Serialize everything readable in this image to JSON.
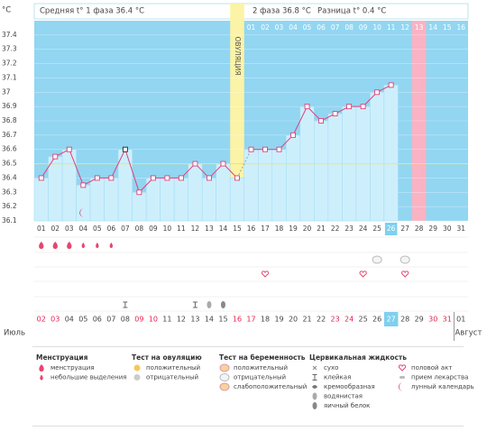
{
  "chart_data": {
    "type": "line",
    "y_unit": "°C",
    "phase1_text": "Средняя t° 1 фаза 36.4 °C",
    "phase2_text": "2 фаза 36.8 °C",
    "diff_text": "Разница t° 0.4 °C",
    "ovulation_label": "ОВУЛЯЦИЯ",
    "ovulation_day": "15",
    "categories": [
      "01",
      "02",
      "03",
      "04",
      "05",
      "06",
      "07",
      "08",
      "09",
      "10",
      "11",
      "12",
      "13",
      "14",
      "15",
      "16",
      "17",
      "18",
      "19",
      "20",
      "21",
      "22",
      "23",
      "24",
      "25",
      "26",
      "27",
      "28",
      "29",
      "30",
      "31"
    ],
    "highlighted_day": "26",
    "phase2_days": [
      "01",
      "02",
      "03",
      "04",
      "05",
      "06",
      "07",
      "08",
      "09",
      "10",
      "11",
      "12",
      "13",
      "14",
      "15",
      "16"
    ],
    "highlighted_phase2_day": "13",
    "series": [
      {
        "name": "t°",
        "color": "#e0407a",
        "values": [
          36.4,
          36.55,
          36.6,
          36.35,
          36.4,
          36.4,
          36.6,
          36.3,
          36.4,
          36.4,
          36.4,
          36.5,
          36.4,
          36.5,
          36.4,
          36.6,
          36.6,
          36.6,
          36.7,
          36.9,
          36.8,
          36.85,
          36.9,
          36.9,
          37.0,
          37.05,
          null,
          null,
          null,
          null,
          null
        ]
      }
    ],
    "coverline": 36.5,
    "ylim": [
      36.1,
      37.5
    ],
    "yticks": [
      36.1,
      36.2,
      36.3,
      36.4,
      36.5,
      36.6,
      36.7,
      36.8,
      36.9,
      37,
      37.1,
      37.2,
      37.3,
      37.4
    ],
    "grid": true,
    "markers": [
      {
        "day": "01",
        "icon": "menstruation"
      },
      {
        "day": "02",
        "icon": "menstruation"
      },
      {
        "day": "03",
        "icon": "menstruation"
      },
      {
        "day": "04",
        "icon": "spotting"
      },
      {
        "day": "05",
        "icon": "spotting"
      },
      {
        "day": "06",
        "icon": "spotting"
      },
      {
        "day": "25",
        "icon": "pregnancy-negative"
      },
      {
        "day": "27",
        "icon": "pregnancy-negative"
      },
      {
        "day": "17",
        "icon": "intercourse"
      },
      {
        "day": "24",
        "icon": "intercourse"
      },
      {
        "day": "27",
        "icon": "intercourse"
      },
      {
        "day": "07",
        "icon": "sticky"
      },
      {
        "day": "12",
        "icon": "sticky"
      },
      {
        "day": "13",
        "icon": "watery"
      },
      {
        "day": "14",
        "icon": "egg-white"
      },
      {
        "day": "04",
        "icon": "moon"
      }
    ],
    "dates": [
      {
        "label": "02",
        "red": true
      },
      {
        "label": "03",
        "red": true
      },
      {
        "label": "04",
        "red": false
      },
      {
        "label": "05",
        "red": false
      },
      {
        "label": "06",
        "red": false
      },
      {
        "label": "07",
        "red": false
      },
      {
        "label": "08",
        "red": false
      },
      {
        "label": "09",
        "red": true
      },
      {
        "label": "10",
        "red": true
      },
      {
        "label": "11",
        "red": false
      },
      {
        "label": "12",
        "red": false
      },
      {
        "label": "13",
        "red": false
      },
      {
        "label": "14",
        "red": false
      },
      {
        "label": "15",
        "red": false
      },
      {
        "label": "16",
        "red": true
      },
      {
        "label": "17",
        "red": true
      },
      {
        "label": "18",
        "red": false
      },
      {
        "label": "19",
        "red": false
      },
      {
        "label": "20",
        "red": false
      },
      {
        "label": "21",
        "red": false
      },
      {
        "label": "22",
        "red": false
      },
      {
        "label": "23",
        "red": true
      },
      {
        "label": "24",
        "red": true
      },
      {
        "label": "25",
        "red": false
      },
      {
        "label": "26",
        "red": false
      },
      {
        "label": "27",
        "red": false
      },
      {
        "label": "28",
        "red": false
      },
      {
        "label": "29",
        "red": false
      },
      {
        "label": "30",
        "red": true
      },
      {
        "label": "31",
        "red": true
      },
      {
        "label": "01",
        "red": false
      }
    ],
    "highlighted_date": "27",
    "month_start": "Июль",
    "month_end": "Август",
    "legend": [
      {
        "title": "Менструация",
        "items": [
          "менструация",
          "небольшие выделения"
        ]
      },
      {
        "title": "Тест на овуляцию",
        "items": [
          "положительный",
          "отрицательный"
        ]
      },
      {
        "title": "Тест на беременность",
        "items": [
          "положительный",
          "отрицательный",
          "слабоположительный"
        ]
      },
      {
        "title": "Цервикальная жидкость",
        "items": [
          "сухо",
          "клейкая",
          "кремообразная",
          "водянистая",
          "яичный белок"
        ]
      },
      {
        "items": [
          "половой акт",
          "прием лекарства",
          "лунный календарь"
        ]
      }
    ]
  }
}
